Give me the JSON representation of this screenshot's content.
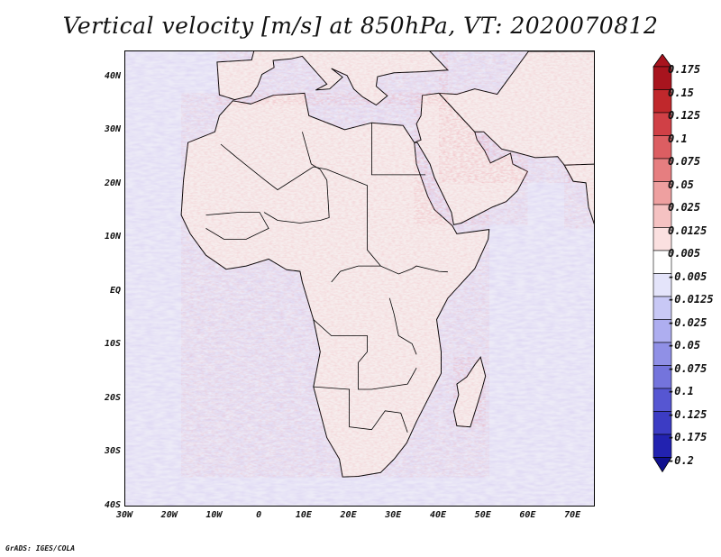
{
  "title": "Vertical velocity [m/s] at 850hPa, VT: 2020070812",
  "credit": "GrADS: IGES/COLA",
  "lat_labels": [
    "40N",
    "30N",
    "20N",
    "10N",
    "EQ",
    "10S",
    "20S",
    "30S",
    "40S"
  ],
  "lon_labels": [
    "30W",
    "20W",
    "10W",
    "0",
    "10E",
    "20E",
    "30E",
    "40E",
    "50E",
    "60E",
    "70E"
  ],
  "colorbar": {
    "labels": [
      "0.175",
      "0.15",
      "0.125",
      "0.1",
      "0.075",
      "0.05",
      "0.025",
      "0.0125",
      "0.005",
      "-0.005",
      "-0.0125",
      "-0.025",
      "-0.05",
      "-0.075",
      "-0.1",
      "-0.125",
      "-0.175",
      "-0.2"
    ],
    "colors": [
      "#a8141e",
      "#c0282c",
      "#d04046",
      "#dc5e62",
      "#e67e80",
      "#eea0a0",
      "#f5c2c2",
      "#fbe0e0",
      "#ffffff",
      "#e4e4fa",
      "#c8c8f5",
      "#aeaef0",
      "#9090e6",
      "#7474dc",
      "#5656d2",
      "#3c3cc4",
      "#2222b0",
      "#10108e"
    ]
  },
  "map": {
    "lon_range": [
      -30,
      75
    ],
    "lat_range": [
      -40,
      45
    ],
    "land_color": "#f6eded",
    "ocean_color": "#eceaf7"
  }
}
